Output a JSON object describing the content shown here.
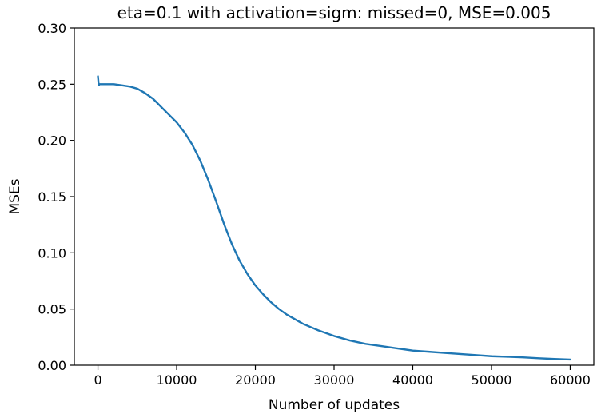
{
  "chart_data": {
    "type": "line",
    "title": "eta=0.1 with activation=sigm: missed=0, MSE=0.005",
    "xlabel": "Number of updates",
    "ylabel": "MSEs",
    "xlim": [
      -3000,
      63000
    ],
    "ylim": [
      0.0,
      0.3
    ],
    "x_ticks": [
      0,
      10000,
      20000,
      30000,
      40000,
      50000,
      60000
    ],
    "x_tick_labels": [
      "0",
      "10000",
      "20000",
      "30000",
      "40000",
      "50000",
      "60000"
    ],
    "y_ticks": [
      0.0,
      0.05,
      0.1,
      0.15,
      0.2,
      0.25,
      0.3
    ],
    "y_tick_labels": [
      "0.00",
      "0.05",
      "0.10",
      "0.15",
      "0.20",
      "0.25",
      "0.30"
    ],
    "grid": false,
    "series": [
      {
        "color": "#1f77b4",
        "x": [
          0,
          100,
          200,
          1000,
          2000,
          3000,
          4000,
          5000,
          6000,
          7000,
          8000,
          9000,
          10000,
          11000,
          12000,
          13000,
          14000,
          15000,
          16000,
          17000,
          18000,
          19000,
          20000,
          21000,
          22000,
          23000,
          24000,
          25000,
          26000,
          27000,
          28000,
          30000,
          32000,
          34000,
          36000,
          38000,
          40000,
          42000,
          44000,
          46000,
          48000,
          50000,
          52000,
          54000,
          56000,
          58000,
          60000
        ],
        "y": [
          0.257,
          0.249,
          0.25,
          0.25,
          0.25,
          0.249,
          0.248,
          0.246,
          0.242,
          0.237,
          0.23,
          0.223,
          0.216,
          0.207,
          0.196,
          0.182,
          0.165,
          0.146,
          0.126,
          0.108,
          0.093,
          0.081,
          0.071,
          0.063,
          0.056,
          0.05,
          0.045,
          0.041,
          0.037,
          0.034,
          0.031,
          0.026,
          0.022,
          0.019,
          0.017,
          0.015,
          0.013,
          0.012,
          0.011,
          0.01,
          0.009,
          0.008,
          0.0075,
          0.007,
          0.0062,
          0.0055,
          0.005
        ]
      }
    ]
  }
}
